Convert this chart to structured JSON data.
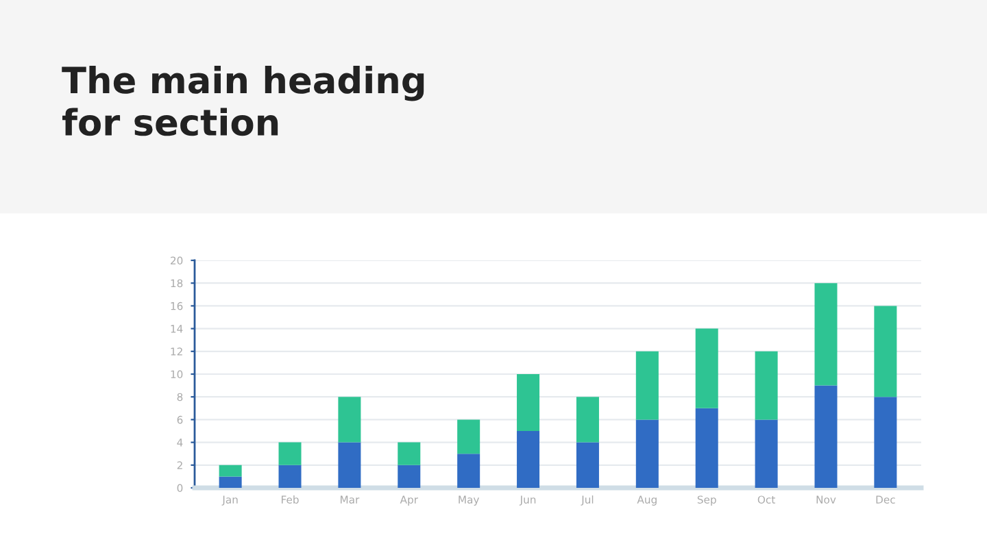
{
  "chart_data": {
    "type": "bar",
    "title": "The main heading\nfor section",
    "stacked": true,
    "categories": [
      "Jan",
      "Feb",
      "Mar",
      "Apr",
      "May",
      "Jun",
      "Jul",
      "Aug",
      "Sep",
      "Oct",
      "Nov",
      "Dec"
    ],
    "series": [
      {
        "color": "#306cc4",
        "values": [
          1,
          2,
          4,
          2,
          3,
          5,
          4,
          6,
          7,
          6,
          9,
          8
        ]
      },
      {
        "color": "#2ec493",
        "values": [
          1,
          2,
          4,
          2,
          3,
          5,
          4,
          6,
          7,
          6,
          9,
          8
        ]
      }
    ],
    "ylim": [
      0,
      20
    ],
    "yticks": [
      0,
      2,
      4,
      6,
      8,
      10,
      12,
      14,
      16,
      18,
      20
    ],
    "grid": "y"
  }
}
